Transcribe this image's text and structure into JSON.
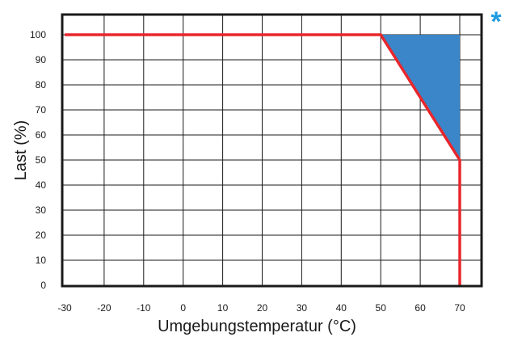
{
  "chart_data": {
    "type": "line",
    "xlabel": "Umgebungstemperatur (°C)",
    "ylabel": "Last (%)",
    "xlim": [
      -30,
      70
    ],
    "ylim": [
      0,
      100
    ],
    "x_ticks": [
      "-30",
      "-20",
      "-10",
      "0",
      "10",
      "20",
      "30",
      "40",
      "50",
      "60",
      "70"
    ],
    "y_ticks": [
      "0",
      "10",
      "20",
      "30",
      "40",
      "50",
      "60",
      "70",
      "80",
      "90",
      "100"
    ],
    "grid": true,
    "series": [
      {
        "x": [
          -30,
          50,
          70,
          70
        ],
        "y": [
          100,
          100,
          50,
          0
        ],
        "color": "#e8262c"
      }
    ],
    "shaded_region": {
      "x": [
        50,
        70,
        70
      ],
      "y": [
        100,
        100,
        50
      ],
      "color": "#3a86c8"
    },
    "marker": "*",
    "marker_color": "#1d9be0",
    "frame_color": "#1a1a1a",
    "grid_color": "#1a1a1a"
  }
}
